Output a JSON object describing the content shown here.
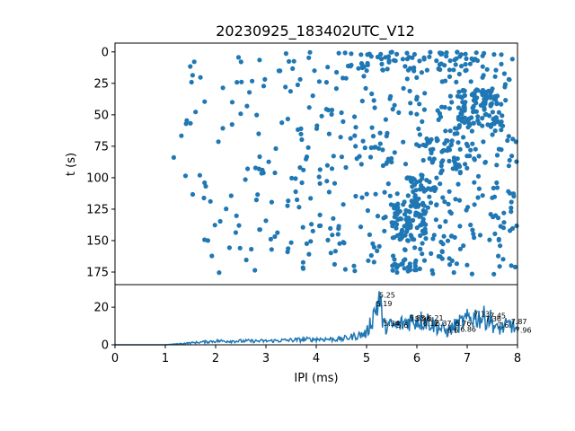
{
  "chart_data": [
    {
      "type": "scatter",
      "title": "20230925_183402UTC_V12",
      "xlabel": "",
      "ylabel": "t (s)",
      "xlim": [
        0,
        8
      ],
      "ylim": [
        185,
        -7
      ],
      "y_inverted": true,
      "color": "#1f77b4",
      "yticks": [
        0,
        25,
        50,
        75,
        100,
        125,
        150,
        175
      ],
      "clusters": [
        {
          "x_range": [
            5.5,
            6.2
          ],
          "y_range": [
            120,
            150
          ],
          "count": 80
        },
        {
          "x_range": [
            6.8,
            7.6
          ],
          "y_range": [
            30,
            60
          ],
          "count": 90
        },
        {
          "x_range": [
            6.2,
            7.0
          ],
          "y_range": [
            60,
            100
          ],
          "count": 40
        },
        {
          "x_range": [
            5.8,
            6.4
          ],
          "y_range": [
            100,
            125
          ],
          "count": 40
        },
        {
          "x_range": [
            4.5,
            7.5
          ],
          "y_range": [
            0,
            15
          ],
          "count": 60
        },
        {
          "x_range": [
            5.5,
            6.0
          ],
          "y_range": [
            165,
            175
          ],
          "count": 20
        }
      ],
      "scatter_background_points": 520,
      "x_sparse_start": 1.0
    },
    {
      "type": "line",
      "xlabel": "IPI (ms)",
      "ylabel": "",
      "xlim": [
        0,
        8
      ],
      "ylim": [
        0,
        32
      ],
      "color": "#1f77b4",
      "xticks": [
        0,
        1,
        2,
        3,
        4,
        5,
        6,
        7,
        8
      ],
      "yticks": [
        0,
        20
      ],
      "profile": [
        {
          "x": 0.0,
          "y": 0
        },
        {
          "x": 1.0,
          "y": 0
        },
        {
          "x": 1.5,
          "y": 1
        },
        {
          "x": 2.0,
          "y": 2
        },
        {
          "x": 3.0,
          "y": 2
        },
        {
          "x": 4.0,
          "y": 3
        },
        {
          "x": 4.5,
          "y": 3
        },
        {
          "x": 5.0,
          "y": 6
        },
        {
          "x": 5.19,
          "y": 20
        },
        {
          "x": 5.25,
          "y": 25
        },
        {
          "x": 5.34,
          "y": 10
        },
        {
          "x": 5.6,
          "y": 10
        },
        {
          "x": 5.85,
          "y": 13
        },
        {
          "x": 6.21,
          "y": 13
        },
        {
          "x": 6.37,
          "y": 10
        },
        {
          "x": 6.6,
          "y": 7
        },
        {
          "x": 6.76,
          "y": 10
        },
        {
          "x": 7.13,
          "y": 15
        },
        {
          "x": 7.45,
          "y": 14
        },
        {
          "x": 7.6,
          "y": 8
        },
        {
          "x": 7.87,
          "y": 11
        },
        {
          "x": 8.0,
          "y": 7
        }
      ],
      "peak_labels": [
        {
          "text": "5.25",
          "x": 5.25,
          "y": 25
        },
        {
          "text": "5.19",
          "x": 5.19,
          "y": 20.5
        },
        {
          "text": "5.34",
          "x": 5.34,
          "y": 10
        },
        {
          "text": "5.6",
          "x": 5.6,
          "y": 9
        },
        {
          "text": "5.85",
          "x": 5.85,
          "y": 13
        },
        {
          "text": "5.96",
          "x": 5.96,
          "y": 12.5
        },
        {
          "text": "6.21",
          "x": 6.21,
          "y": 13
        },
        {
          "text": "6.12",
          "x": 6.12,
          "y": 10
        },
        {
          "text": "6.37",
          "x": 6.37,
          "y": 10
        },
        {
          "text": "6.6",
          "x": 6.6,
          "y": 6.5
        },
        {
          "text": "6.76",
          "x": 6.76,
          "y": 10
        },
        {
          "text": "6.86",
          "x": 6.86,
          "y": 7
        },
        {
          "text": "7.13",
          "x": 7.13,
          "y": 15
        },
        {
          "text": "7.45",
          "x": 7.45,
          "y": 14
        },
        {
          "text": "7.36",
          "x": 7.36,
          "y": 12.5
        },
        {
          "text": "7.87",
          "x": 7.87,
          "y": 11
        },
        {
          "text": "7.6",
          "x": 7.6,
          "y": 9
        },
        {
          "text": "7.96",
          "x": 7.96,
          "y": 6.5
        }
      ]
    }
  ]
}
